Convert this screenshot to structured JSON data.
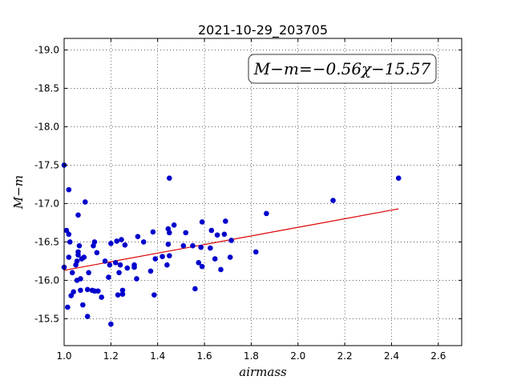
{
  "chart_data": {
    "type": "scatter",
    "title": "2021-10-29_203705",
    "xlabel": "airmass",
    "ylabel": "M−m",
    "xlim": [
      1.0,
      2.7
    ],
    "ylim": [
      -19.15,
      -15.15
    ],
    "y_inverted": true,
    "grid": true,
    "x_ticks": [
      "1.0",
      "1.2",
      "1.4",
      "1.6",
      "1.8",
      "2.0",
      "2.2",
      "2.4",
      "2.6"
    ],
    "y_ticks": [
      "-15.5",
      "-16.0",
      "-16.5",
      "-17.0",
      "-17.5",
      "-18.0",
      "-18.5",
      "-19.0"
    ],
    "annotation": "M−m=−0.56χ−15.57",
    "points_color": "#0000cc",
    "fit_color": "#dd0000",
    "fit": {
      "slope": -0.56,
      "intercept": -15.57,
      "x_range": [
        1.0,
        2.43
      ]
    },
    "x": [
      1.0,
      1.0,
      1.01,
      1.015,
      1.02,
      1.02,
      1.02,
      1.025,
      1.03,
      1.035,
      1.04,
      1.05,
      1.055,
      1.055,
      1.06,
      1.06,
      1.06,
      1.065,
      1.07,
      1.07,
      1.075,
      1.08,
      1.085,
      1.09,
      1.1,
      1.1,
      1.105,
      1.12,
      1.125,
      1.13,
      1.13,
      1.14,
      1.145,
      1.16,
      1.175,
      1.19,
      1.195,
      1.2,
      1.2,
      1.22,
      1.225,
      1.23,
      1.235,
      1.24,
      1.245,
      1.25,
      1.25,
      1.26,
      1.27,
      1.3,
      1.3,
      1.31,
      1.315,
      1.34,
      1.37,
      1.38,
      1.385,
      1.39,
      1.42,
      1.44,
      1.445,
      1.445,
      1.45,
      1.45,
      1.45,
      1.47,
      1.51,
      1.52,
      1.55,
      1.56,
      1.575,
      1.585,
      1.59,
      1.59,
      1.625,
      1.63,
      1.645,
      1.655,
      1.67,
      1.685,
      1.69,
      1.71,
      1.715,
      1.82,
      1.865,
      2.15,
      2.43
    ],
    "y": [
      -17.5,
      -16.17,
      -16.65,
      -15.65,
      -16.6,
      -17.18,
      -16.3,
      -16.5,
      -15.8,
      -16.1,
      -15.85,
      -16.2,
      -16.0,
      -16.25,
      -16.85,
      -16.37,
      -16.33,
      -16.45,
      -16.02,
      -15.87,
      -16.28,
      -15.68,
      -16.3,
      -17.02,
      -15.88,
      -15.53,
      -16.1,
      -15.87,
      -16.45,
      -15.86,
      -16.5,
      -16.36,
      -15.86,
      -15.78,
      -16.25,
      -16.04,
      -16.2,
      -16.48,
      -15.43,
      -16.23,
      -16.51,
      -15.81,
      -16.1,
      -16.2,
      -16.53,
      -15.87,
      -15.82,
      -16.46,
      -16.16,
      -16.2,
      -16.17,
      -16.02,
      -16.57,
      -16.5,
      -16.12,
      -16.63,
      -15.81,
      -16.28,
      -16.31,
      -16.2,
      -16.47,
      -16.67,
      -17.33,
      -16.62,
      -16.32,
      -16.72,
      -16.45,
      -16.62,
      -16.45,
      -15.89,
      -16.23,
      -16.43,
      -16.18,
      -16.76,
      -16.42,
      -16.65,
      -16.28,
      -16.59,
      -16.14,
      -16.6,
      -16.77,
      -16.3,
      -16.52,
      -16.37,
      -16.87,
      -17.04,
      -17.33
    ]
  }
}
